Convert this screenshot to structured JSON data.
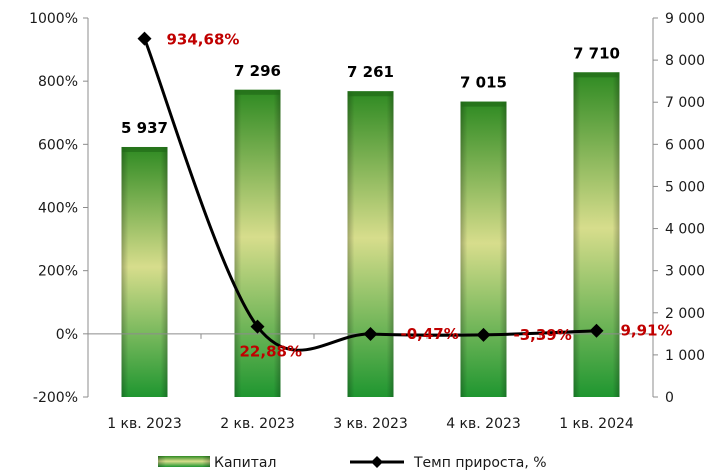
{
  "chart_data": {
    "type": "bar",
    "categories": [
      "1 кв. 2023",
      "2 кв. 2023",
      "3 кв. 2023",
      "4 кв. 2023",
      "1 кв. 2024"
    ],
    "series": [
      {
        "name": "Капитал",
        "type": "bar",
        "axis": "right",
        "values": [
          5937,
          7296,
          7261,
          7015,
          7710
        ],
        "value_labels": [
          "5 937",
          "7 296",
          "7 261",
          "7 015",
          "7 710"
        ],
        "color": "#3f9a2e"
      },
      {
        "name": "Темп прироста, %",
        "type": "line",
        "axis": "left",
        "values": [
          934.68,
          22.88,
          -0.47,
          -3.39,
          9.91
        ],
        "value_labels": [
          "934,68%",
          "22,88%",
          "-0,47%",
          "-3,39%",
          "9,91%"
        ],
        "color": "#000000",
        "label_color": "#c00000"
      }
    ],
    "left_axis": {
      "ylim": [
        -200,
        1000
      ],
      "ticks": [
        1000,
        800,
        600,
        400,
        200,
        0,
        -200
      ],
      "tick_labels": [
        "1000%",
        "800%",
        "600%",
        "400%",
        "200%",
        "0%",
        "-200%"
      ]
    },
    "right_axis": {
      "ylim": [
        0,
        9000
      ],
      "ticks": [
        9000,
        8000,
        7000,
        6000,
        5000,
        4000,
        3000,
        2000,
        1000,
        0
      ],
      "tick_labels": [
        "9 000",
        "8 000",
        "7 000",
        "6 000",
        "5 000",
        "4 000",
        "3 000",
        "2 000",
        "1 000",
        "0"
      ]
    },
    "grid": false,
    "legend": {
      "position": "bottom",
      "items": [
        "Капитал",
        "Темп прироста, %"
      ]
    }
  }
}
